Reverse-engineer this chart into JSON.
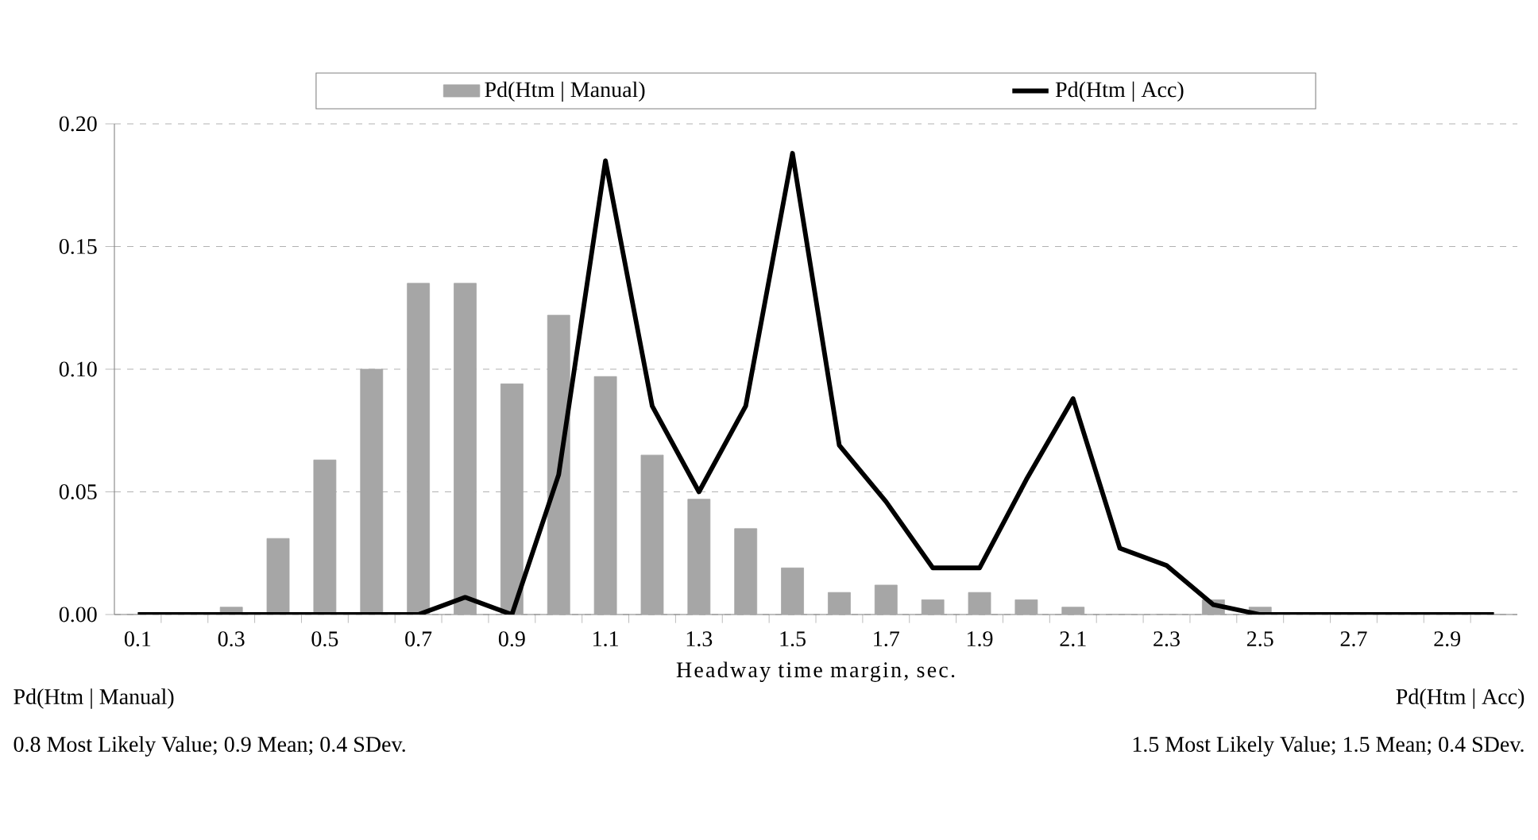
{
  "chart_data": {
    "type": "bar",
    "xlabel": "Headway time margin, sec.",
    "categories": [
      "0.1",
      null,
      "0.3",
      null,
      "0.5",
      null,
      "0.7",
      null,
      "0.9",
      null,
      "1.1",
      null,
      "1.3",
      null,
      "1.5",
      null,
      "1.7",
      null,
      "1.9",
      null,
      "2.1",
      null,
      "2.3",
      null,
      "2.5",
      null,
      "2.7",
      null,
      "2.9",
      null
    ],
    "series": [
      {
        "name": "Pd(Htm | Manual)",
        "color": "#a6a6a6",
        "values": [
          0,
          0,
          0.003,
          0.031,
          0.063,
          0.1,
          0.135,
          0.135,
          0.094,
          0.122,
          0.097,
          0.065,
          0.047,
          0.035,
          0.019,
          0.009,
          0.012,
          0.006,
          0.009,
          0.006,
          0.003,
          0,
          0,
          0.006,
          0.003,
          0,
          0,
          0,
          0,
          0
        ]
      },
      {
        "name": "Pd(Htm | Acc)",
        "type": "line",
        "color": "#000000",
        "values": [
          0,
          0,
          0,
          0,
          0,
          0,
          0,
          0.007,
          0,
          0.057,
          0.185,
          0.085,
          0.05,
          0.085,
          0.188,
          0.069,
          0.046,
          0.019,
          0.019,
          0.055,
          0.088,
          0.027,
          0.02,
          0.004,
          0,
          0,
          0,
          0,
          0,
          0
        ]
      }
    ],
    "ylim": [
      0,
      0.2
    ],
    "yticks": [
      {
        "value": 0,
        "label": "0.00"
      },
      {
        "value": 0.05,
        "label": "0.05"
      },
      {
        "value": 0.1,
        "label": "0.10"
      },
      {
        "value": 0.15,
        "label": "0.15"
      },
      {
        "value": 0.2,
        "label": "0.20"
      }
    ],
    "grid": "y",
    "legend": "top",
    "marker": "none",
    "line_style": "solid",
    "annotations": [
      "Pd(Htm | Manual)",
      "Pd(Htm | Acc)",
      "0.8 Most Likely Value; 0.9 Mean; 0.4 SDev.",
      "1.5 Most Likely Value; 1.5 Mean; 0.4 SDev."
    ]
  }
}
